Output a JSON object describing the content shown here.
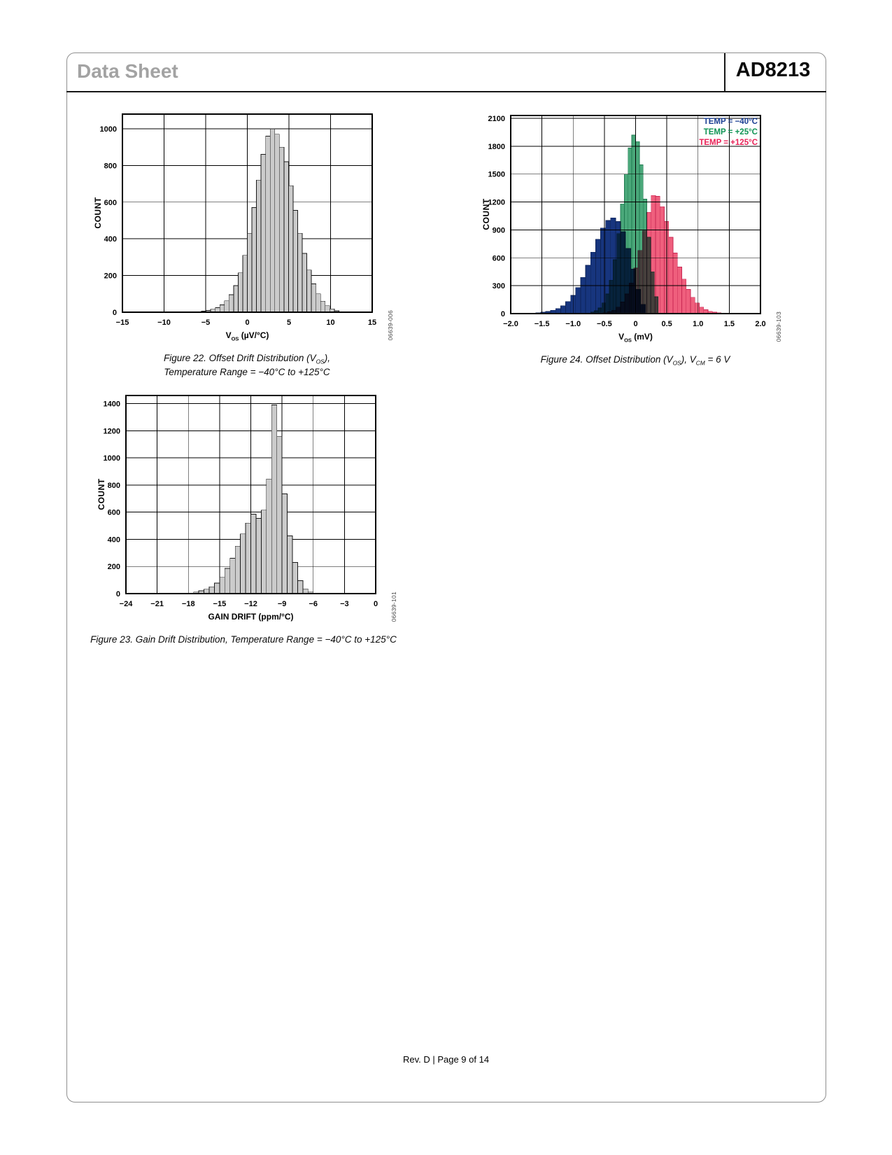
{
  "page": {
    "header": {
      "doc_type": "Data Sheet",
      "part_number": "AD8213"
    },
    "footer": {
      "text": "Rev. D | Page 9 of 14"
    }
  },
  "figures": {
    "fig22": {
      "code": "06639-006",
      "ylabel": "COUNT",
      "xlabel_pre": "V",
      "xlabel_sub": "OS",
      "xlabel_post": " (µV/°C)",
      "caption1_pre": "Figure 22. Offset Drift Distribution (V",
      "caption1_sub": "OS",
      "caption1_post": "),",
      "caption2": "Temperature Range = −40°C to +125°C"
    },
    "fig23": {
      "code": "06639-101",
      "ylabel": "COUNT",
      "xlabel_pre": "GAIN DRIFT (ppm/°C)",
      "xlabel_sub": "",
      "xlabel_post": "",
      "caption1": "Figure 23. Gain Drift Distribution, Temperature Range = −40°C to +125°C"
    },
    "fig24": {
      "code": "06639-103",
      "ylabel": "COUNT",
      "xlabel_pre": "V",
      "xlabel_sub": "OS",
      "xlabel_post": " (mV)",
      "caption_pre": "Figure 24. Offset Distribution (V",
      "caption_sub1": "OS",
      "caption_mid": "), V",
      "caption_sub2": "CM",
      "caption_post": " = 6 V"
    }
  },
  "chart_data": [
    {
      "id": "fig22",
      "type": "bar",
      "title": "Offset Drift Distribution",
      "xlabel": "VOS (µV/°C)",
      "ylabel": "COUNT",
      "xlim": [
        -15,
        15
      ],
      "ylim": [
        0,
        1080
      ],
      "xtick_vals": [
        -15,
        -10,
        -5,
        0,
        5,
        10,
        15
      ],
      "xtick_labels": [
        "−15",
        "−10",
        "−5",
        "0",
        "5",
        "10",
        "15"
      ],
      "ytick_vals": [
        0,
        200,
        400,
        600,
        800,
        1000
      ],
      "ytick_labels": [
        "0",
        "200",
        "400",
        "600",
        "800",
        "1000"
      ],
      "grid": true,
      "series": [
        {
          "name": "all-parts",
          "fill": "#cbcbcb",
          "stroke": "#1a1a1a",
          "x_start": -5.5,
          "bin_width": 0.55,
          "counts": [
            6,
            10,
            16,
            25,
            40,
            62,
            95,
            145,
            215,
            310,
            430,
            570,
            720,
            860,
            960,
            1000,
            970,
            900,
            820,
            690,
            555,
            430,
            320,
            230,
            155,
            100,
            60,
            35,
            18,
            8
          ]
        }
      ]
    },
    {
      "id": "fig23",
      "type": "bar",
      "title": "Gain Drift Distribution",
      "xlabel": "GAIN DRIFT (ppm/°C)",
      "ylabel": "COUNT",
      "xlim": [
        -24,
        0
      ],
      "ylim": [
        0,
        1460
      ],
      "xtick_vals": [
        -24,
        -21,
        -18,
        -15,
        -12,
        -9,
        -6,
        -3,
        0
      ],
      "xtick_labels": [
        "−24",
        "−21",
        "−18",
        "−15",
        "−12",
        "−9",
        "−6",
        "−3",
        "0"
      ],
      "ytick_vals": [
        0,
        200,
        400,
        600,
        800,
        1000,
        1200,
        1400
      ],
      "ytick_labels": [
        "0",
        "200",
        "400",
        "600",
        "800",
        "1000",
        "1200",
        "1400"
      ],
      "grid": true,
      "series": [
        {
          "name": "all-parts",
          "fill": "#cbcbcb",
          "stroke": "#1a1a1a",
          "x_start": -17.5,
          "bin_width": 0.5,
          "counts": [
            12,
            20,
            32,
            50,
            78,
            120,
            185,
            260,
            350,
            440,
            520,
            585,
            555,
            615,
            845,
            1390,
            1160,
            735,
            425,
            230,
            95,
            35,
            12
          ]
        }
      ]
    },
    {
      "id": "fig24",
      "type": "bar",
      "title": "Offset Distribution, VCM = 6 V",
      "xlabel": "VOS (mV)",
      "ylabel": "COUNT",
      "xlim": [
        -2.0,
        2.0
      ],
      "ylim": [
        0,
        2130
      ],
      "xtick_vals": [
        -2.0,
        -1.5,
        -1.0,
        -0.5,
        0,
        0.5,
        1.0,
        1.5,
        2.0
      ],
      "xtick_labels": [
        "−2.0",
        "−1.5",
        "−1.0",
        "−0.5",
        "0",
        "0.5",
        "1.0",
        "1.5",
        "2.0"
      ],
      "ytick_vals": [
        0,
        300,
        600,
        900,
        1200,
        1500,
        1800,
        2100
      ],
      "ytick_labels": [
        "0",
        "300",
        "600",
        "900",
        "1200",
        "1500",
        "1800",
        "2100"
      ],
      "grid": true,
      "legend_position": "top-right",
      "legend": [
        {
          "label": "TEMP = −40°C",
          "color": "#1b3f93"
        },
        {
          "label": "TEMP = +25°C",
          "color": "#0f9454"
        },
        {
          "label": "TEMP = +125°C",
          "color": "#e82257"
        }
      ],
      "series": [
        {
          "name": "temp-minus-40C",
          "fill": "#17357e",
          "stroke": "#0e2356",
          "x_start": -1.6,
          "bin_width": 0.08,
          "counts": [
            8,
            14,
            22,
            35,
            55,
            85,
            130,
            195,
            280,
            390,
            520,
            660,
            800,
            920,
            1000,
            1030,
            990,
            880,
            700,
            480,
            260,
            100
          ]
        },
        {
          "name": "temp-plus-25C",
          "fill": "#4aa87a",
          "stroke": "#1f7a50",
          "x_start": -0.72,
          "bin_width": 0.06,
          "counts": [
            15,
            30,
            60,
            115,
            210,
            360,
            580,
            860,
            1180,
            1500,
            1780,
            1920,
            1850,
            1600,
            1230,
            820,
            450,
            180
          ]
        },
        {
          "name": "temp-plus-125C",
          "fill": "#ef5f7d",
          "stroke": "#c92753",
          "x_start": -0.52,
          "bin_width": 0.07,
          "counts": [
            8,
            18,
            35,
            70,
            125,
            210,
            330,
            490,
            680,
            890,
            1090,
            1270,
            1260,
            1150,
            990,
            820,
            650,
            500,
            370,
            260,
            175,
            115,
            70,
            42,
            25,
            14,
            8,
            5,
            3,
            2
          ]
        }
      ]
    }
  ]
}
